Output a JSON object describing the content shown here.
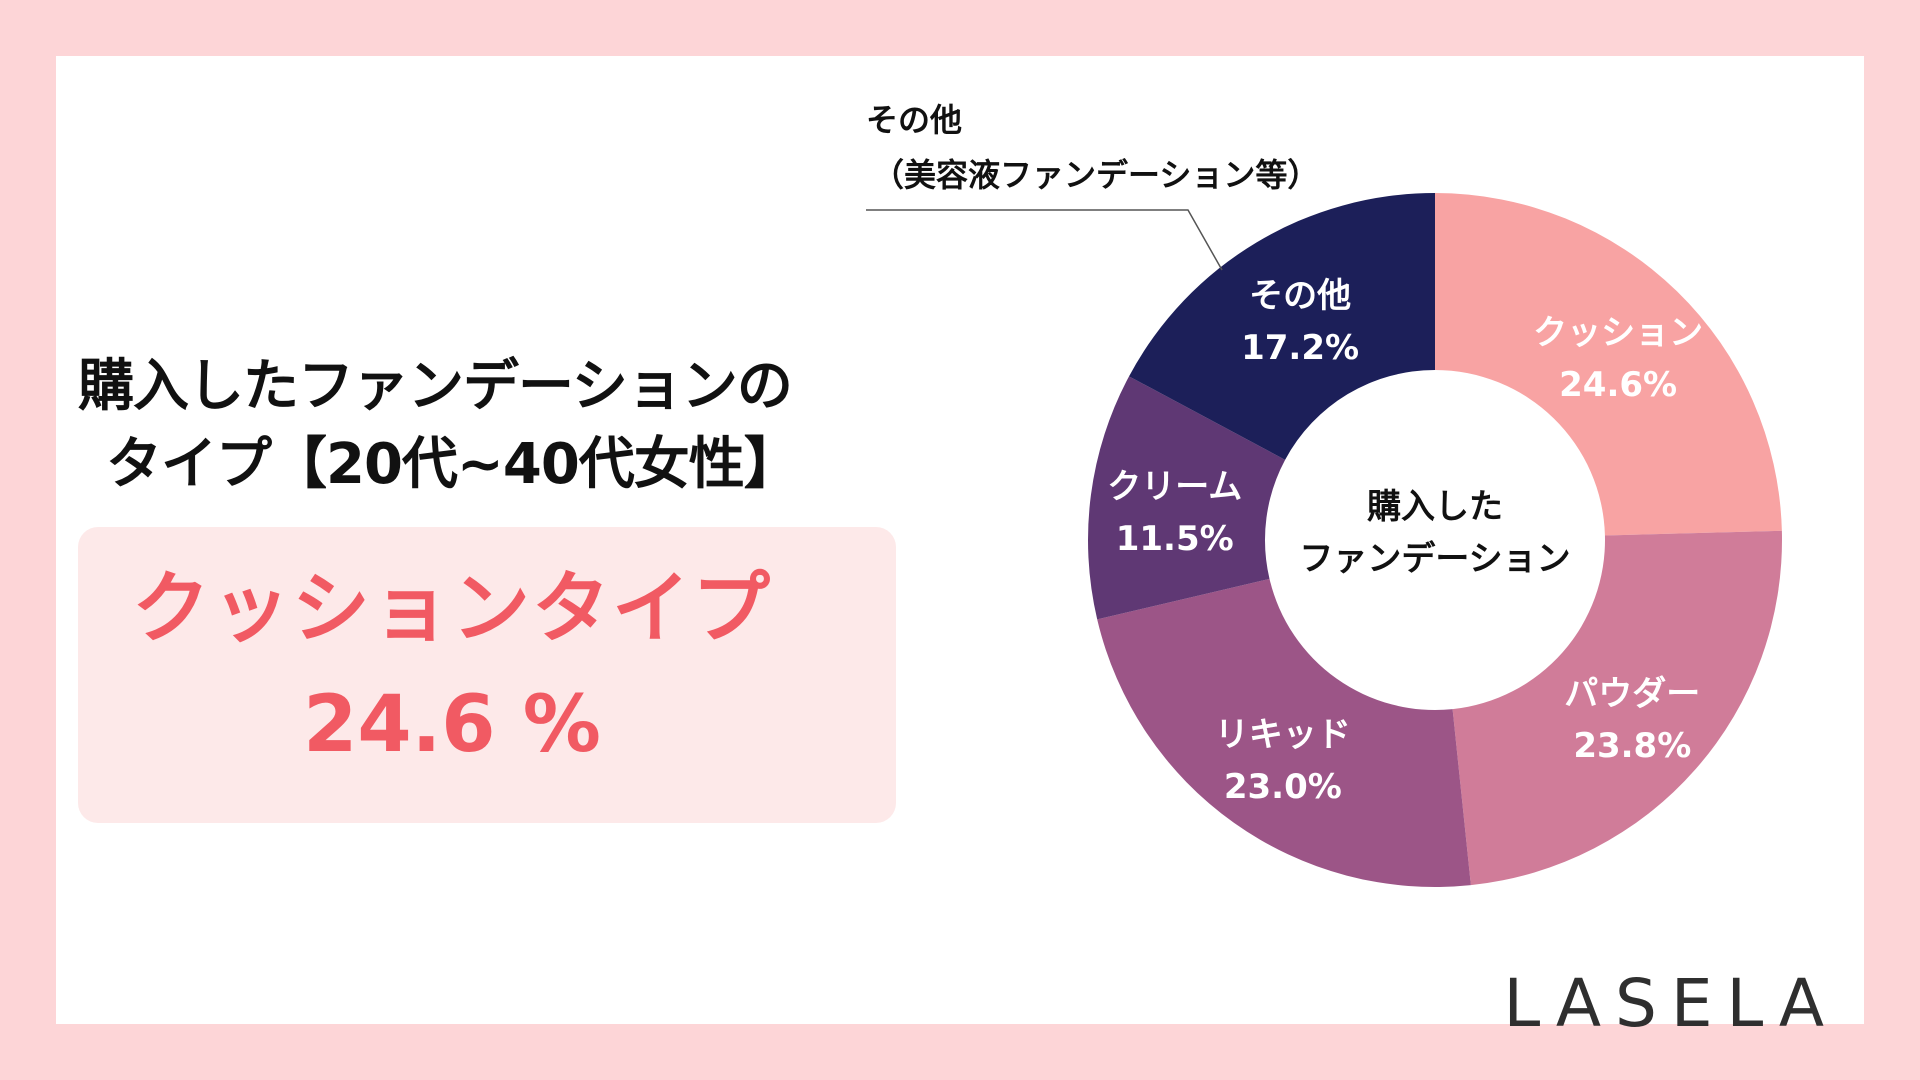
{
  "title": {
    "line1": "購入したファンデーションの",
    "line2": "タイプ【20代~40代女性】"
  },
  "highlight": {
    "label": "クッションタイプ",
    "value": "24.6 %"
  },
  "logo": "LASELA",
  "chart_data": {
    "type": "pie",
    "variant": "donut",
    "center_label": [
      "購入した",
      "ファンデーション"
    ],
    "slices": [
      {
        "label": "クッション",
        "value": 24.6,
        "value_label": "24.6%",
        "color": "#f8a3a3"
      },
      {
        "label": "パウダー",
        "value": 23.8,
        "value_label": "23.8%",
        "color": "#d07c99"
      },
      {
        "label": "リキッド",
        "value": 23.0,
        "value_label": "23.0%",
        "color": "#9c5587"
      },
      {
        "label": "クリーム",
        "value": 11.5,
        "value_label": "11.5%",
        "color": "#5f3874"
      },
      {
        "label": "その他",
        "value": 17.2,
        "value_label": "17.2%",
        "color": "#1c1f59"
      }
    ],
    "annotation": {
      "lines": [
        "その他",
        "（美容液ファンデーション等）"
      ]
    }
  }
}
